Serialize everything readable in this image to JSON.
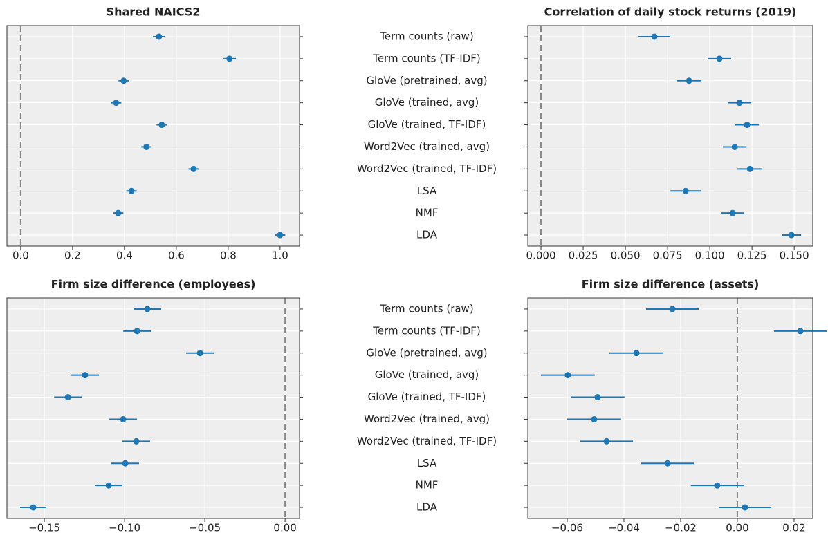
{
  "chart_data": [
    {
      "type": "errorbar",
      "title": "Shared NAICS2",
      "categories": [
        "Term counts (raw)",
        "Term counts (TF-IDF)",
        "GloVe (pretrained, avg)",
        "GloVe (trained, avg)",
        "GloVe (trained, TF-IDF)",
        "Word2Vec (trained, avg)",
        "Word2Vec (trained, TF-IDF)",
        "LSA",
        "NMF",
        "LDA"
      ],
      "values": [
        0.533,
        0.805,
        0.397,
        0.368,
        0.544,
        0.485,
        0.667,
        0.427,
        0.376,
        1.0
      ],
      "errors": [
        0.023,
        0.025,
        0.02,
        0.02,
        0.02,
        0.02,
        0.02,
        0.02,
        0.02,
        0.02
      ],
      "color": "#1f77b4",
      "xlim": [
        -0.053,
        1.075
      ],
      "xticks": [
        {
          "value": 0,
          "label": "0.0"
        },
        {
          "value": 0.2,
          "label": "0.2"
        },
        {
          "value": 0.4,
          "label": "0.4"
        },
        {
          "value": 0.6,
          "label": "0.6"
        },
        {
          "value": 0.8,
          "label": "0.8"
        },
        {
          "value": 1,
          "label": "1.0"
        }
      ],
      "reference_x": 0,
      "grid": true
    },
    {
      "type": "errorbar",
      "title": "Correlation of daily stock returns (2019)",
      "values": [
        0.0672,
        0.1057,
        0.0877,
        0.1176,
        0.1221,
        0.1148,
        0.1238,
        0.0857,
        0.1135,
        0.1484
      ],
      "errors": [
        0.0094,
        0.007,
        0.0074,
        0.007,
        0.007,
        0.007,
        0.0074,
        0.009,
        0.007,
        0.0057
      ],
      "color": "#1f77b4",
      "xlim": [
        -0.0078,
        0.161
      ],
      "xticks": [
        {
          "value": 0,
          "label": "0.000"
        },
        {
          "value": 0.025,
          "label": "0.025"
        },
        {
          "value": 0.05,
          "label": "0.050"
        },
        {
          "value": 0.075,
          "label": "0.075"
        },
        {
          "value": 0.1,
          "label": "0.100"
        },
        {
          "value": 0.125,
          "label": "0.125"
        },
        {
          "value": 0.15,
          "label": "0.150"
        }
      ],
      "reference_x": 0,
      "grid": true
    },
    {
      "type": "errorbar",
      "title": "Firm size difference (employees)",
      "categories": [
        "Term counts (raw)",
        "Term counts (TF-IDF)",
        "GloVe (pretrained, avg)",
        "GloVe (trained, avg)",
        "GloVe (trained, TF-IDF)",
        "Word2Vec (trained, avg)",
        "Word2Vec (trained, TF-IDF)",
        "LSA",
        "NMF",
        "LDA"
      ],
      "values": [
        -0.0858,
        -0.0922,
        -0.053,
        -0.1246,
        -0.1353,
        -0.1009,
        -0.0927,
        -0.0996,
        -0.1099,
        -0.1569
      ],
      "errors": [
        0.0086,
        0.0086,
        0.0086,
        0.0086,
        0.0086,
        0.0086,
        0.0086,
        0.0086,
        0.0086,
        0.0082
      ],
      "color": "#1f77b4",
      "xlim": [
        -0.1733,
        0.009
      ],
      "xticks": [
        {
          "value": -0.15,
          "label": "−0.15"
        },
        {
          "value": -0.1,
          "label": "−0.10"
        },
        {
          "value": -0.05,
          "label": "−0.05"
        },
        {
          "value": 0,
          "label": "0.00"
        }
      ],
      "reference_x": 0,
      "grid": true
    },
    {
      "type": "errorbar",
      "title": "Firm size difference (assets)",
      "values": [
        -0.0229,
        0.0222,
        -0.0356,
        -0.0598,
        -0.0493,
        -0.0505,
        -0.0461,
        -0.0246,
        -0.0071,
        0.0027
      ],
      "errors": [
        0.0093,
        0.0093,
        0.0095,
        0.0095,
        0.0095,
        0.0095,
        0.0093,
        0.0093,
        0.0093,
        0.0093
      ],
      "color": "#1f77b4",
      "xlim": [
        -0.0739,
        0.0266
      ],
      "xticks": [
        {
          "value": -0.06,
          "label": "−0.06"
        },
        {
          "value": -0.04,
          "label": "−0.04"
        },
        {
          "value": -0.02,
          "label": "−0.02"
        },
        {
          "value": 0,
          "label": "0.00"
        },
        {
          "value": 0.02,
          "label": "0.02"
        }
      ],
      "reference_x": 0,
      "grid": true
    }
  ]
}
